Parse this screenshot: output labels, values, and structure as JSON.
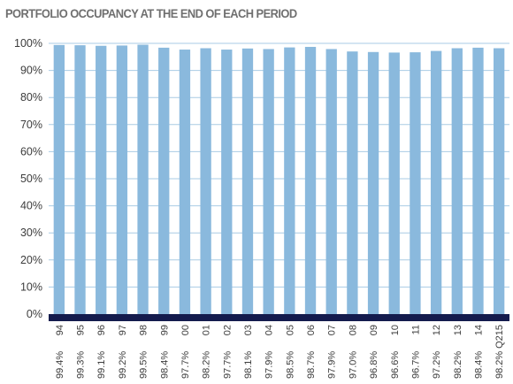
{
  "chart_data": {
    "type": "bar",
    "title": "PORTFOLIO OCCUPANCY AT THE END OF EACH PERIOD",
    "categories": [
      "94",
      "95",
      "96",
      "97",
      "98",
      "99",
      "00",
      "01",
      "02",
      "03",
      "04",
      "05",
      "06",
      "07",
      "08",
      "09",
      "10",
      "11",
      "12",
      "13",
      "14",
      "Q215"
    ],
    "values": [
      99.4,
      99.3,
      99.1,
      99.2,
      99.5,
      98.4,
      97.7,
      98.2,
      97.7,
      98.1,
      97.9,
      98.5,
      98.7,
      97.9,
      97.0,
      96.8,
      96.6,
      96.7,
      97.2,
      98.2,
      98.4,
      98.2
    ],
    "value_labels": [
      "99.4%",
      "99.3%",
      "99.1%",
      "99.2%",
      "99.5%",
      "98.4%",
      "97.7%",
      "98.2%",
      "97.7%",
      "98.1%",
      "97.9%",
      "98.5%",
      "98.7%",
      "97.9%",
      "97.0%",
      "96.8%",
      "96.6%",
      "96.7%",
      "97.2%",
      "98.2%",
      "98.4%",
      "98.2%"
    ],
    "ylim": [
      0,
      100
    ],
    "yticks": [
      "0%",
      "10%",
      "20%",
      "30%",
      "40%",
      "50%",
      "60%",
      "70%",
      "80%",
      "90%",
      "100%"
    ],
    "xlabel": "",
    "ylabel": "",
    "grid": true,
    "colors": {
      "bar": "#8ab9dd",
      "baseline": "#141b4d",
      "grid": "#a9cbe4",
      "title": "#6f6f6f",
      "text": "#3c3c3c"
    }
  }
}
